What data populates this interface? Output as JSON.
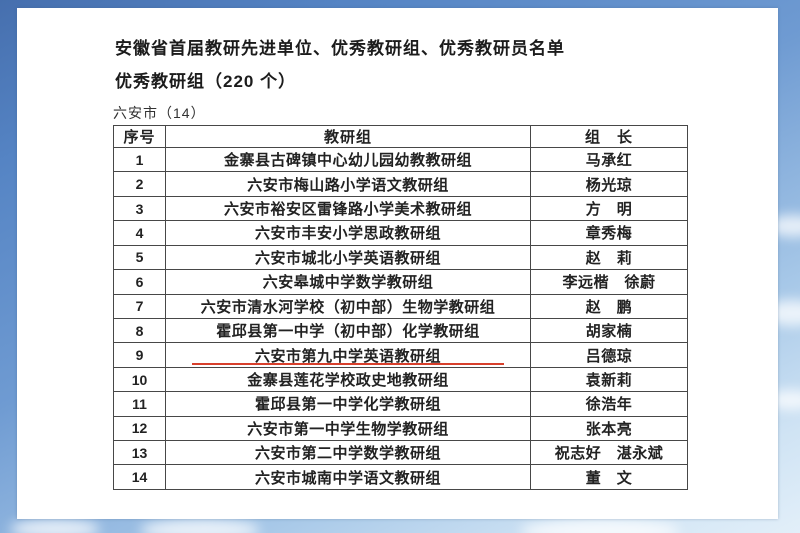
{
  "background": {
    "sky_top_color": "#466fae",
    "sky_bottom_color": "#e2eff9"
  },
  "document": {
    "title": "安徽省首届教研先进单位、优秀教研组、优秀教研员名单",
    "subtitle": "优秀教研组（220 个）",
    "section_label": "六安市（14）"
  },
  "table": {
    "headers": [
      "序号",
      "教研组",
      "组　长"
    ],
    "underline_color": "#d8402c",
    "rows": [
      {
        "index": "1",
        "group": "金寨县古碑镇中心幼儿园幼教教研组",
        "leader": "马承红"
      },
      {
        "index": "2",
        "group": "六安市梅山路小学语文教研组",
        "leader": "杨光琼"
      },
      {
        "index": "3",
        "group": "六安市裕安区雷锋路小学美术教研组",
        "leader": "方　明"
      },
      {
        "index": "4",
        "group": "六安市丰安小学思政教研组",
        "leader": "章秀梅"
      },
      {
        "index": "5",
        "group": "六安市城北小学英语教研组",
        "leader": "赵　莉"
      },
      {
        "index": "6",
        "group": "六安皋城中学数学教研组",
        "leader": "李远楷　徐蔚"
      },
      {
        "index": "7",
        "group": "六安市清水河学校（初中部）生物学教研组",
        "leader": "赵　鹏"
      },
      {
        "index": "8",
        "group": "霍邱县第一中学（初中部）化学教研组",
        "leader": "胡家楠"
      },
      {
        "index": "9",
        "group": "六安市第九中学英语教研组",
        "leader": "吕德琼",
        "underlined": true
      },
      {
        "index": "10",
        "group": "金寨县莲花学校政史地教研组",
        "leader": "袁新莉"
      },
      {
        "index": "11",
        "group": "霍邱县第一中学化学教研组",
        "leader": "徐浩年"
      },
      {
        "index": "12",
        "group": "六安市第一中学生物学教研组",
        "leader": "张本亮"
      },
      {
        "index": "13",
        "group": "六安市第二中学数学教研组",
        "leader": "祝志好　湛永斌"
      },
      {
        "index": "14",
        "group": "六安市城南中学语文教研组",
        "leader": "董　文"
      }
    ]
  }
}
